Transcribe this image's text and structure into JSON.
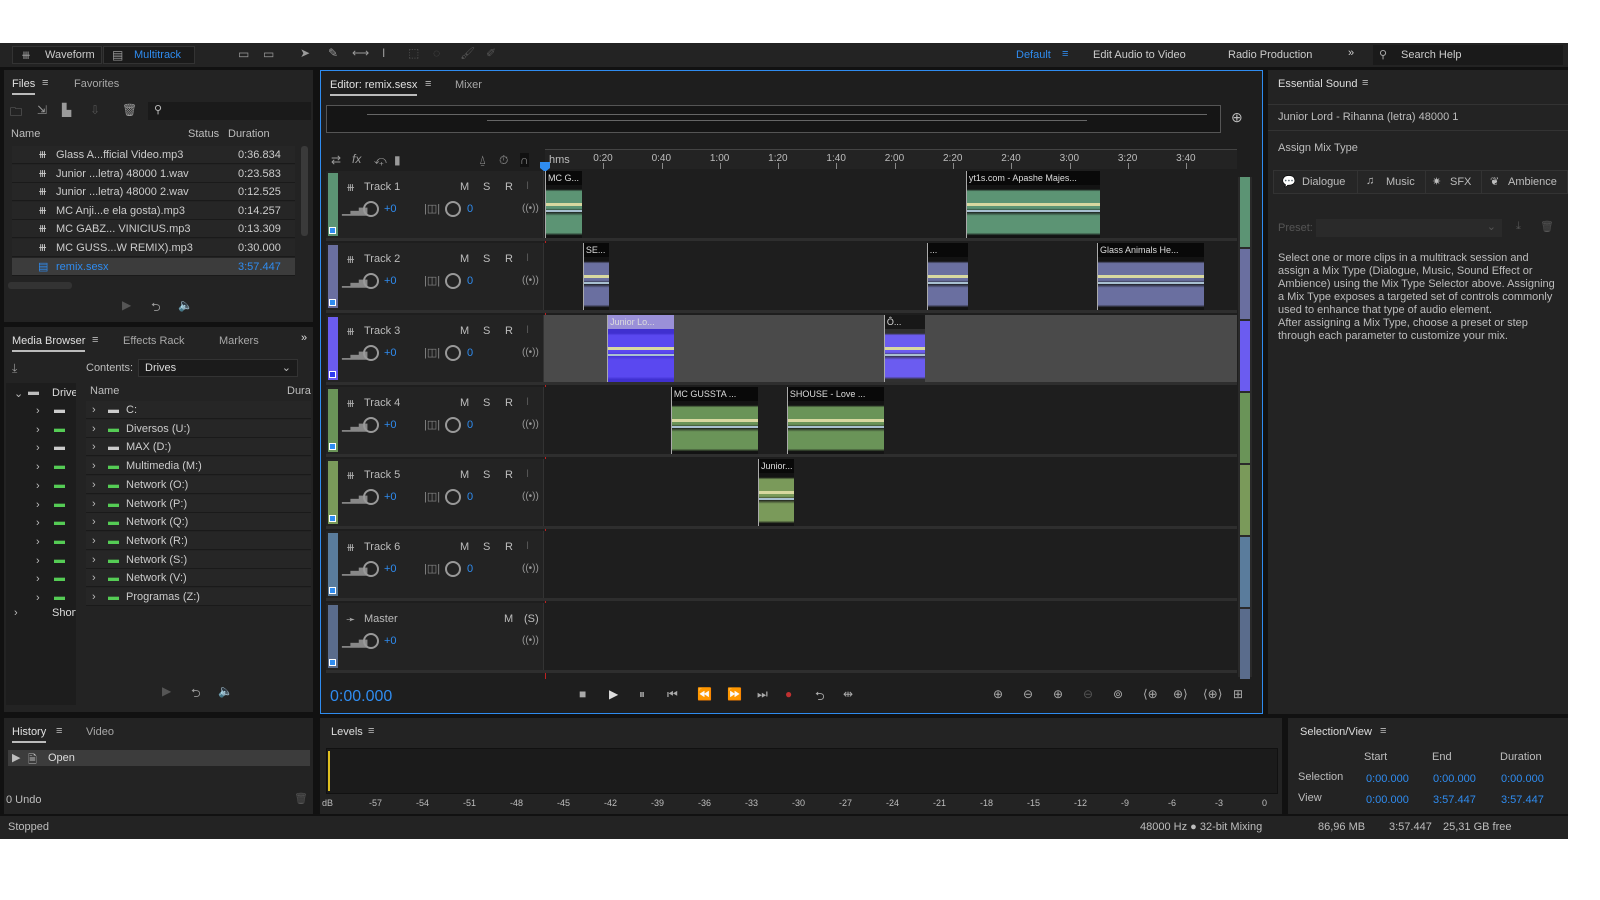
{
  "toolbar": {
    "waveform": "Waveform",
    "multitrack": "Multitrack",
    "workspaces": [
      "Default",
      "Edit Audio to Video",
      "Radio Production"
    ],
    "search_placeholder": "Search Help"
  },
  "files": {
    "tabs": [
      "Files",
      "Favorites"
    ],
    "columns": [
      "Name",
      "Status",
      "Duration"
    ],
    "items": [
      {
        "name": "Glass A...fficial Video.mp3",
        "duration": "0:36.834",
        "type": "audio"
      },
      {
        "name": "Junior ...letra) 48000 1.wav",
        "duration": "0:23.583",
        "type": "audio"
      },
      {
        "name": "Junior ...letra) 48000 2.wav",
        "duration": "0:12.525",
        "type": "audio"
      },
      {
        "name": "MC Anji...e ela gosta).mp3",
        "duration": "0:14.257",
        "type": "audio"
      },
      {
        "name": "MC GABZ... VINICIUS.mp3",
        "duration": "0:13.309",
        "type": "audio"
      },
      {
        "name": "MC GUSS...W REMIX).mp3",
        "duration": "0:30.000",
        "type": "audio"
      },
      {
        "name": "remix.sesx",
        "duration": "3:57.447",
        "type": "session",
        "selected": true
      }
    ]
  },
  "media": {
    "tabs": [
      "Media Browser",
      "Effects Rack",
      "Markers"
    ],
    "contents_label": "Contents:",
    "contents_value": "Drives",
    "tree_root": "Drives",
    "tree_shortcuts": "Shortcuts",
    "column_name": "Name",
    "column_duration": "Dura",
    "drives": [
      "C:",
      "Diversos (U:)",
      "MAX (D:)",
      "Multimedia (M:)",
      "Network (O:)",
      "Network (P:)",
      "Network (Q:)",
      "Network (R:)",
      "Network (S:)",
      "Network (V:)",
      "Programas (Z:)"
    ]
  },
  "history": {
    "tabs": [
      "History",
      "Video"
    ],
    "items": [
      "Open"
    ],
    "undo": "0 Undo"
  },
  "editor": {
    "tabs": [
      "Editor: remix.sesx",
      "Mixer"
    ],
    "ruler_unit": "hms",
    "ruler": [
      "0:20",
      "0:40",
      "1:00",
      "1:20",
      "1:40",
      "2:00",
      "2:20",
      "2:40",
      "3:00",
      "3:20",
      "3:40"
    ],
    "duration_s": 237.447,
    "current_time": "0:00.000",
    "tracks": [
      {
        "name": "Track 1",
        "color": "#5c9474",
        "volume": "+0",
        "pan": "0",
        "clips": [
          {
            "name": "MC G...",
            "start": 0,
            "end": 12.7
          },
          {
            "name": "yt1s.com - Apashe  Majes...",
            "start": 144.4,
            "end": 190.4
          }
        ]
      },
      {
        "name": "Track 2",
        "color": "#6a6fa0",
        "volume": "+0",
        "pan": "0",
        "clips": [
          {
            "name": "SE...",
            "start": 13,
            "end": 22
          },
          {
            "name": "...",
            "start": 131,
            "end": 145.1
          },
          {
            "name": "Glass Animals  He...",
            "start": 189.4,
            "end": 226.1
          }
        ]
      },
      {
        "name": "Track 3",
        "color": "#6b5cf0",
        "volume": "+0",
        "pan": "0",
        "selected": true,
        "clips": [
          {
            "name": "Junior Lo...",
            "start": 21.3,
            "end": 44.3,
            "selected": true
          },
          {
            "name": "Ô...",
            "start": 116.3,
            "end": 130.4
          }
        ]
      },
      {
        "name": "Track 4",
        "color": "#6a9458",
        "volume": "+0",
        "pan": "0",
        "clips": [
          {
            "name": "MC GUSSTA ...",
            "start": 43.2,
            "end": 73.1
          },
          {
            "name": "SHOUSE - Love ...",
            "start": 83,
            "end": 116.3
          }
        ]
      },
      {
        "name": "Track 5",
        "color": "#7a9a5a",
        "volume": "+0",
        "pan": "0",
        "clips": [
          {
            "name": "Junior...",
            "start": 73.1,
            "end": 85.4
          }
        ]
      },
      {
        "name": "Track 6",
        "color": "#5a7c9c",
        "volume": "+0",
        "pan": "0",
        "clips": []
      },
      {
        "name": "Master",
        "color": "#5a6c8c",
        "volume": "+0",
        "master": true,
        "clips": []
      }
    ],
    "track_buttons": {
      "mute": "M",
      "solo": "S",
      "record": "R",
      "solo_master": "(S)"
    }
  },
  "essential": {
    "title": "Essential Sound",
    "clip": "Junior Lord - Rihanna  (letra) 48000 1",
    "assign": "Assign Mix Type",
    "types": [
      "Dialogue",
      "Music",
      "SFX",
      "Ambience"
    ],
    "preset_label": "Preset:",
    "help": "Select one or more clips in a multitrack session and assign a Mix Type (Dialogue, Music, Sound Effect or Ambience) using the Mix Type Selector above. Assigning a Mix Type exposes a targeted set of controls commonly used to enhance that type of audio element.\nAfter assigning a Mix Type, choose a preset or step through each parameter to customize your mix."
  },
  "levels": {
    "title": "Levels",
    "scale": [
      "dB",
      "-57",
      "-54",
      "-51",
      "-48",
      "-45",
      "-42",
      "-39",
      "-36",
      "-33",
      "-30",
      "-27",
      "-24",
      "-21",
      "-18",
      "-15",
      "-12",
      "-9",
      "-6",
      "-3",
      "0"
    ]
  },
  "selection": {
    "title": "Selection/View",
    "cols": [
      "Start",
      "End",
      "Duration"
    ],
    "rows": [
      {
        "label": "Selection",
        "start": "0:00.000",
        "end": "0:00.000",
        "duration": "0:00.000"
      },
      {
        "label": "View",
        "start": "0:00.000",
        "end": "3:57.447",
        "duration": "3:57.447"
      }
    ]
  },
  "status": {
    "state": "Stopped",
    "format": "48000 Hz ● 32-bit Mixing",
    "memory": "86,96 MB",
    "duration": "3:57.447",
    "free": "25,31 GB free"
  }
}
